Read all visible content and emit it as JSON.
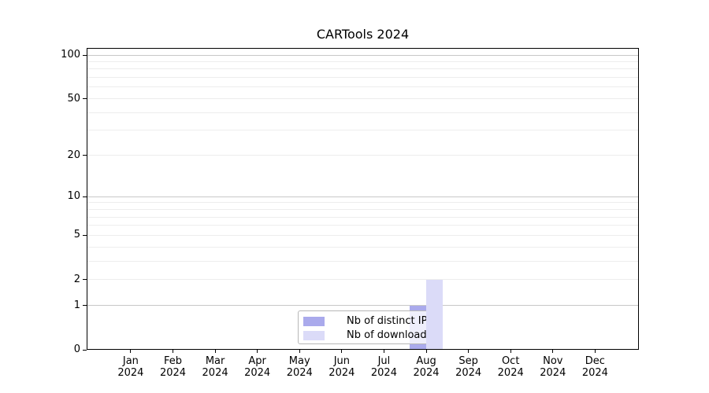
{
  "chart_data": {
    "type": "bar",
    "title": "CARTools 2024",
    "categories": [
      "Jan 2024",
      "Feb 2024",
      "Mar 2024",
      "Apr 2024",
      "May 2024",
      "Jun 2024",
      "Jul 2024",
      "Aug 2024",
      "Sep 2024",
      "Oct 2024",
      "Nov 2024",
      "Dec 2024"
    ],
    "series": [
      {
        "name": "Nb of distinct IPs",
        "color": "#aaaaec",
        "values": [
          0,
          0,
          0,
          0,
          0,
          0,
          0,
          1,
          0,
          0,
          0,
          0
        ]
      },
      {
        "name": "Nb of downloads",
        "color": "#dbdbf8",
        "values": [
          0,
          0,
          0,
          0,
          0,
          0,
          0,
          2,
          0,
          0,
          0,
          0
        ]
      }
    ],
    "xlabel": "",
    "ylabel": "",
    "yscale": "log1p",
    "ylim": [
      0,
      112
    ],
    "yticks": [
      0,
      1,
      2,
      5,
      10,
      20,
      50,
      100
    ],
    "grid": "horizontal",
    "grid_values": [
      1,
      2,
      3,
      4,
      5,
      6,
      7,
      8,
      9,
      10,
      20,
      30,
      40,
      50,
      60,
      70,
      80,
      90,
      100
    ],
    "major_grid_values": [
      1,
      10,
      100
    ],
    "legend_position": "inside lower-center",
    "colors": {
      "axis": "#000000",
      "text": "#000000",
      "major_grid": "#c8c8c8",
      "minor_grid": "#ededed",
      "legend_border": "#b7b7b7"
    }
  }
}
